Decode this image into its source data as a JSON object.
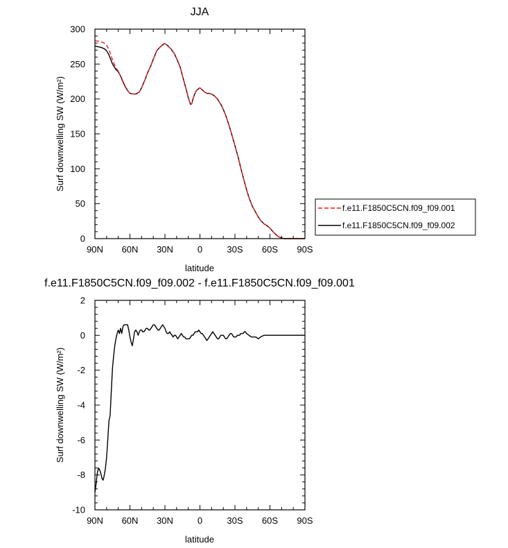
{
  "chart_data": [
    {
      "type": "line",
      "title": "JJA",
      "xlabel": "latitude",
      "ylabel": "Surf downwelling SW (W/m²)",
      "xlim": [
        90,
        -90
      ],
      "ylim": [
        0,
        300
      ],
      "x_ticks": [
        90,
        60,
        30,
        0,
        -30,
        -60,
        -90
      ],
      "x_tick_labels": [
        "90N",
        "60N",
        "30N",
        "0",
        "30S",
        "60S",
        "90S"
      ],
      "y_ticks": [
        0,
        50,
        100,
        150,
        200,
        250,
        300
      ],
      "y_tick_labels": [
        "0",
        "50",
        "100",
        "150",
        "200",
        "250",
        "300"
      ],
      "legend_position": "right-bottom outside",
      "series": [
        {
          "name": "f.e11.F1850C5CN.f09_f09.001",
          "color": "#e31a1c",
          "dash": "dashed",
          "x": [
            90,
            88,
            85,
            82,
            80,
            78,
            75,
            72,
            70,
            68,
            65,
            62,
            60,
            57,
            55,
            52,
            50,
            47,
            45,
            42,
            40,
            37,
            35,
            33,
            31,
            30,
            28,
            25,
            22,
            20,
            17,
            15,
            12,
            10,
            8,
            7,
            6,
            5,
            3,
            1,
            0,
            -2,
            -4,
            -6,
            -8,
            -10,
            -12,
            -15,
            -18,
            -20,
            -22,
            -25,
            -28,
            -30,
            -33,
            -35,
            -38,
            -40,
            -42,
            -45,
            -48,
            -50,
            -52,
            -55,
            -58,
            -60,
            -62,
            -65,
            -67,
            -70,
            -72,
            -75,
            -78,
            -80,
            -82,
            -85,
            -88,
            -90
          ],
          "values": [
            283,
            283,
            282,
            280,
            277,
            271,
            256,
            244,
            240,
            232,
            220,
            212,
            208,
            207,
            207,
            210,
            216,
            228,
            237,
            248,
            257,
            269,
            273,
            276,
            279,
            279,
            277,
            272,
            265,
            258,
            246,
            233,
            215,
            202,
            192,
            193,
            200,
            205,
            212,
            215,
            216,
            213,
            210,
            208,
            208,
            207,
            205,
            200,
            192,
            185,
            177,
            162,
            145,
            133,
            115,
            101,
            82,
            70,
            59,
            46,
            37,
            31,
            26,
            21,
            18,
            15,
            11,
            6,
            3,
            1,
            0,
            0,
            0,
            0,
            0,
            0,
            0,
            0
          ]
        },
        {
          "name": "f.e11.F1850C5CN.f09_f09.002",
          "color": "#000000",
          "dash": "solid",
          "x": [
            90,
            88,
            85,
            82,
            80,
            78,
            75,
            72,
            70,
            68,
            65,
            62,
            60,
            57,
            55,
            52,
            50,
            47,
            45,
            42,
            40,
            37,
            35,
            33,
            31,
            30,
            28,
            25,
            22,
            20,
            17,
            15,
            12,
            10,
            8,
            7,
            6,
            5,
            3,
            1,
            0,
            -2,
            -4,
            -6,
            -8,
            -10,
            -12,
            -15,
            -18,
            -20,
            -22,
            -25,
            -28,
            -30,
            -33,
            -35,
            -38,
            -40,
            -42,
            -45,
            -48,
            -50,
            -52,
            -55,
            -58,
            -60,
            -62,
            -65,
            -67,
            -70,
            -72,
            -75,
            -78,
            -80,
            -82,
            -85,
            -88,
            -90
          ],
          "values": [
            276,
            275,
            274,
            272,
            269,
            263,
            250,
            242,
            239,
            233,
            221,
            212,
            208,
            207,
            207,
            210,
            216,
            228,
            237,
            248,
            257,
            269,
            273,
            276,
            279,
            279,
            277,
            272,
            265,
            258,
            246,
            233,
            215,
            202,
            192,
            193,
            200,
            205,
            212,
            215,
            216,
            213,
            210,
            208,
            208,
            207,
            205,
            200,
            192,
            185,
            177,
            162,
            145,
            133,
            115,
            101,
            82,
            70,
            59,
            46,
            37,
            31,
            26,
            21,
            18,
            15,
            11,
            6,
            3,
            1,
            0,
            0,
            0,
            0,
            0,
            0,
            0,
            0
          ]
        }
      ]
    },
    {
      "type": "line",
      "title": "f.e11.F1850C5CN.f09_f09.002 - f.e11.F1850C5CN.f09_f09.001",
      "xlabel": "latitude",
      "ylabel": "Surf downwelling SW (W/m²)",
      "xlim": [
        90,
        -90
      ],
      "ylim": [
        -10,
        2
      ],
      "x_ticks": [
        90,
        60,
        30,
        0,
        -30,
        -60,
        -90
      ],
      "x_tick_labels": [
        "90N",
        "60N",
        "30N",
        "0",
        "30S",
        "60S",
        "90S"
      ],
      "y_ticks": [
        -10,
        -8,
        -6,
        -4,
        -2,
        0,
        2
      ],
      "y_tick_labels": [
        "-10",
        "-8",
        "-6",
        "-4",
        "-2",
        "0",
        "2"
      ],
      "series": [
        {
          "color": "#000000",
          "dash": "solid",
          "x": [
            90,
            89,
            88,
            87,
            86,
            85,
            84,
            83,
            82,
            81,
            80,
            79,
            78,
            77,
            76,
            75,
            74,
            73,
            72,
            71,
            70,
            69,
            68,
            67,
            66,
            65,
            64,
            63,
            62,
            61,
            60,
            59,
            58,
            57,
            56,
            55,
            54,
            53,
            52,
            51,
            50,
            49,
            48,
            47,
            46,
            45,
            44,
            43,
            42,
            41,
            40,
            39,
            38,
            37,
            36,
            35,
            34,
            33,
            32,
            31,
            30,
            29,
            28,
            27,
            26,
            25,
            24,
            23,
            22,
            21,
            20,
            19,
            18,
            17,
            16,
            15,
            14,
            13,
            12,
            11,
            10,
            9,
            8,
            7,
            6,
            5,
            4,
            3,
            2,
            1,
            0,
            -1,
            -2,
            -3,
            -4,
            -5,
            -6,
            -7,
            -8,
            -9,
            -10,
            -11,
            -12,
            -13,
            -14,
            -15,
            -16,
            -17,
            -18,
            -19,
            -20,
            -21,
            -22,
            -23,
            -24,
            -25,
            -26,
            -27,
            -28,
            -29,
            -30,
            -31,
            -32,
            -33,
            -34,
            -35,
            -36,
            -37,
            -38,
            -39,
            -40,
            -42,
            -44,
            -46,
            -48,
            -50,
            -52,
            -55,
            -58,
            -60,
            -65,
            -70,
            -75,
            -80,
            -85,
            -90
          ],
          "values": [
            -9.0,
            -8.5,
            -7.9,
            -7.6,
            -7.7,
            -7.9,
            -8.2,
            -8.3,
            -8.0,
            -7.6,
            -7.0,
            -6.0,
            -4.9,
            -4.6,
            -3.2,
            -1.9,
            -1.2,
            -0.6,
            -0.2,
            0.1,
            0.3,
            0.1,
            0.4,
            0.1,
            0.5,
            0.6,
            0.6,
            0.6,
            0.6,
            0.3,
            -0.1,
            -0.4,
            -0.6,
            -0.2,
            0.2,
            0.3,
            0.2,
            0.0,
            0.2,
            0.3,
            0.3,
            0.2,
            0.2,
            0.3,
            0.4,
            0.4,
            0.3,
            0.3,
            0.4,
            0.5,
            0.6,
            0.6,
            0.5,
            0.4,
            0.3,
            0.3,
            0.4,
            0.5,
            0.6,
            0.5,
            0.4,
            0.2,
            0.1,
            0.1,
            0.2,
            0.1,
            0.0,
            -0.1,
            0.0,
            0.0,
            -0.1,
            -0.2,
            -0.1,
            0.0,
            0.1,
            0.0,
            -0.1,
            -0.1,
            -0.2,
            -0.2,
            -0.2,
            -0.2,
            -0.1,
            0.0,
            0.0,
            0.1,
            0.2,
            0.2,
            0.2,
            0.3,
            0.2,
            0.1,
            0.1,
            0.0,
            -0.1,
            -0.2,
            -0.3,
            -0.2,
            -0.1,
            0.0,
            0.1,
            0.2,
            0.1,
            0.0,
            -0.1,
            -0.2,
            -0.2,
            -0.1,
            0.0,
            0.0,
            0.0,
            -0.1,
            -0.2,
            -0.2,
            -0.1,
            0.0,
            0.1,
            0.1,
            0.0,
            -0.1,
            -0.1,
            -0.1,
            0.0,
            0.0,
            0.0,
            0.1,
            0.1,
            0.1,
            0.2,
            0.2,
            0.1,
            0.0,
            -0.1,
            -0.1,
            -0.1,
            -0.2,
            -0.1,
            0.0,
            0.0,
            0.0,
            0.0,
            0.0,
            0.0,
            0.0,
            0.0,
            0.0
          ]
        }
      ]
    }
  ]
}
